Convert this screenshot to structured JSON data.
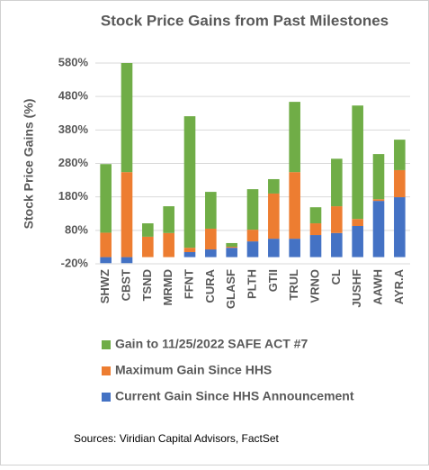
{
  "chart_data": {
    "type": "stacked_bar",
    "title": "Stock Price Gains from Past Milestones",
    "y_label": "Stock Price Gains (%)",
    "source": "Sources: Viridian Capital Advisors, FactSet",
    "categories": [
      "SHWZ",
      "CBST",
      "TSND",
      "MRMD",
      "FFNT",
      "CURA",
      "GLASF",
      "PLTH",
      "GTII",
      "TRUL",
      "VRNO",
      "CL",
      "JUSHF",
      "AAWH",
      "AYR.A"
    ],
    "series": [
      {
        "name": "Current Gain Since HHS Announcement",
        "color": "#4472c4",
        "values": [
          -18,
          -18,
          0,
          0,
          15,
          23,
          28,
          47,
          55,
          55,
          66,
          72,
          93,
          168,
          179
        ]
      },
      {
        "name": "Maximum Gain Since HHS",
        "color": "#ed7d31",
        "values": [
          73,
          254,
          61,
          72,
          13,
          62,
          3,
          35,
          135,
          199,
          35,
          80,
          21,
          5,
          81
        ]
      },
      {
        "name": "Gain to 11/25/2022 SAFE ACT #7",
        "color": "#70ad47",
        "values": [
          205,
          326,
          40,
          80,
          393,
          110,
          11,
          121,
          43,
          210,
          48,
          142,
          339,
          135,
          91
        ]
      }
    ],
    "ylim": [
      -20,
      580
    ],
    "yticks": [
      {
        "value": -20,
        "label": "-20%"
      },
      {
        "value": 80,
        "label": "80%"
      },
      {
        "value": 180,
        "label": "180%"
      },
      {
        "value": 280,
        "label": "280%"
      },
      {
        "value": 380,
        "label": "380%"
      },
      {
        "value": 480,
        "label": "480%"
      },
      {
        "value": 580,
        "label": "580%"
      }
    ],
    "grid": true
  }
}
